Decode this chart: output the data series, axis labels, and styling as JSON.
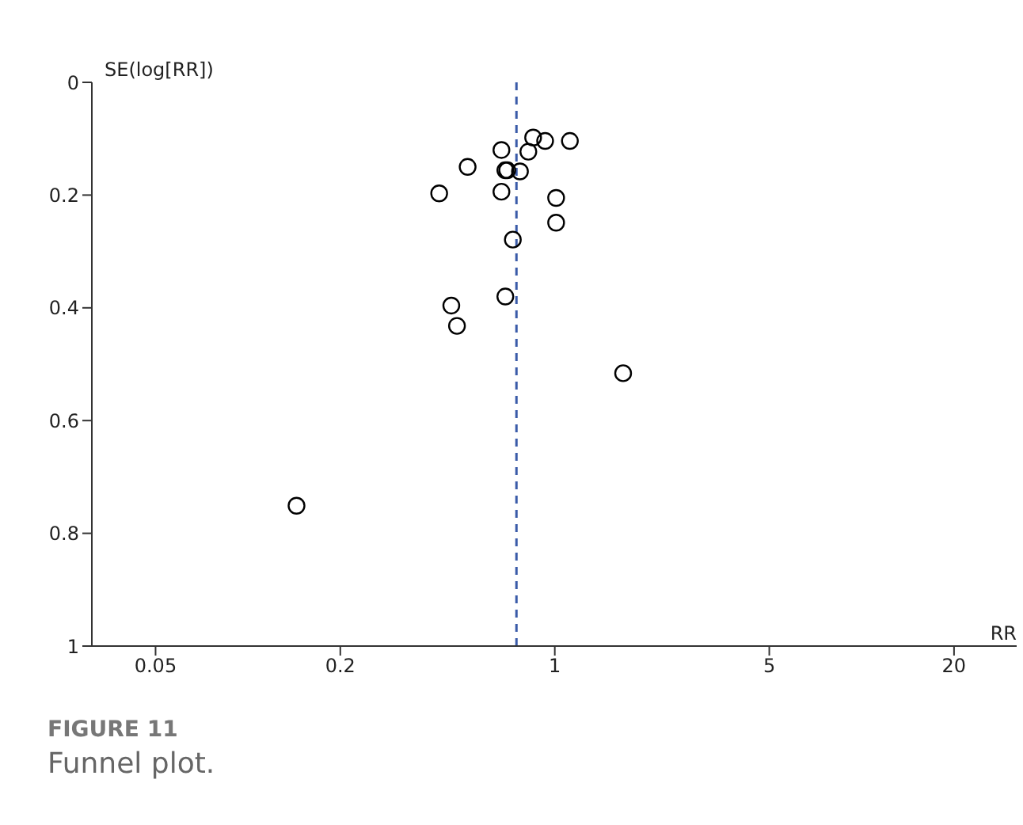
{
  "chart_data": {
    "type": "scatter",
    "xlabel": "RR",
    "ylabel": "SE(log[RR])",
    "log": "x",
    "xlim": [
      0.031,
      32
    ],
    "xticks": [
      0.05,
      0.2,
      1,
      5,
      20
    ],
    "ylim": [
      1,
      0
    ],
    "yticks": [
      0,
      0.2,
      0.4,
      0.6,
      0.8,
      1
    ],
    "grid": false,
    "legend": false,
    "marker": "circle",
    "x": [
      0.85,
      0.93,
      1.12,
      0.67,
      0.82,
      0.52,
      0.69,
      0.7,
      0.77,
      0.42,
      0.67,
      1.01,
      1.01,
      0.73,
      0.69,
      0.46,
      0.48,
      1.67,
      0.144
    ],
    "values": [
      0.098,
      0.104,
      0.104,
      0.12,
      0.123,
      0.15,
      0.156,
      0.156,
      0.158,
      0.197,
      0.194,
      0.205,
      0.249,
      0.279,
      0.38,
      0.396,
      0.432,
      0.516,
      0.751
    ],
    "color": "#000000",
    "ref_lines": [
      {
        "axis": "x",
        "value": 0.75,
        "color": "#3a5ba8",
        "line_style": "dashed"
      }
    ],
    "annotations": [
      "FIGURE 11",
      "Funnel plot."
    ]
  }
}
